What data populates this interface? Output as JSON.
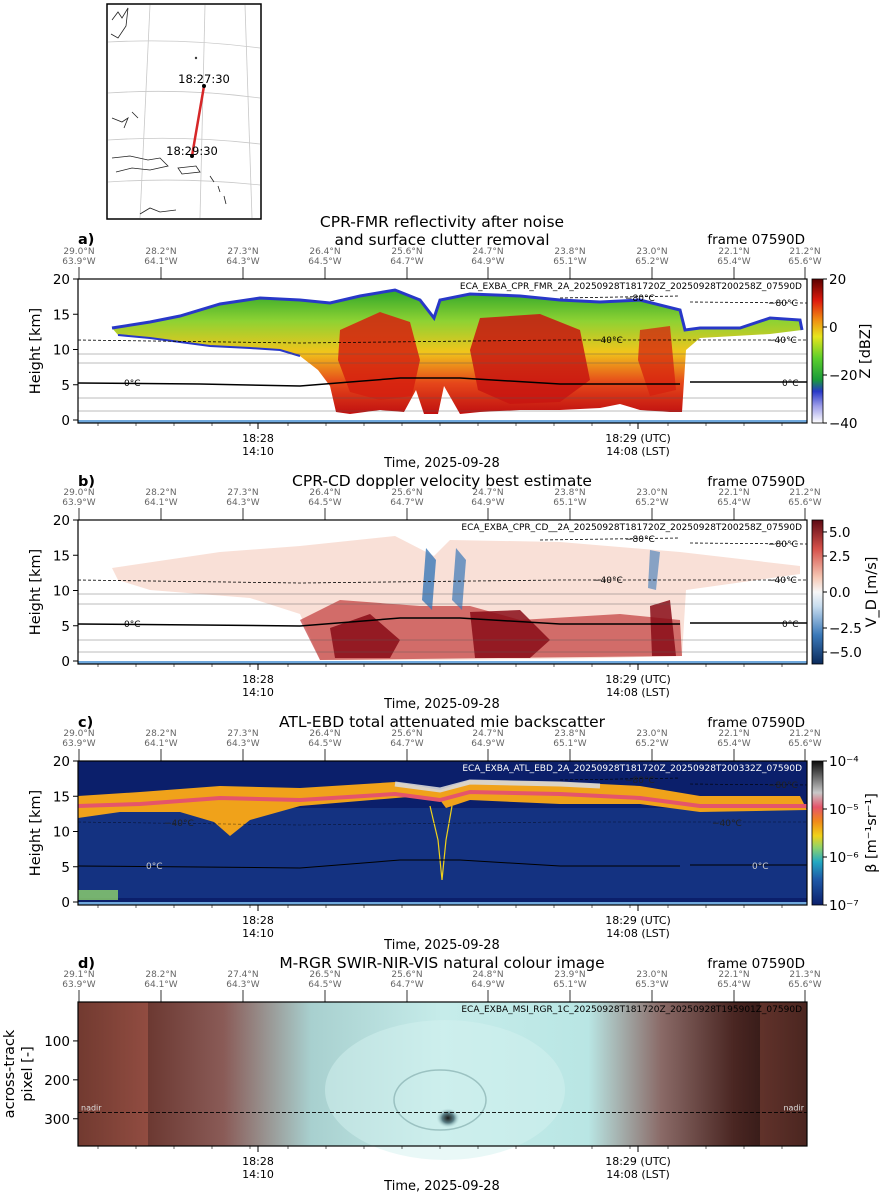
{
  "figure": {
    "frame_label": "frame 07590D",
    "time_axis_label": "Time, 2025-09-28",
    "time_ticks": [
      {
        "utc": "18:28",
        "lst": "14:10"
      },
      {
        "utc": "18:29 (UTC)",
        "lst": "14:08 (LST)"
      }
    ],
    "geo_ticks": [
      {
        "lat": "29.0°N",
        "lon": "63.9°W"
      },
      {
        "lat": "28.2°N",
        "lon": "64.1°W"
      },
      {
        "lat": "27.3°N",
        "lon": "64.3°W"
      },
      {
        "lat": "26.4°N",
        "lon": "64.5°W"
      },
      {
        "lat": "25.6°N",
        "lon": "64.7°W"
      },
      {
        "lat": "24.7°N",
        "lon": "64.9°W"
      },
      {
        "lat": "23.8°N",
        "lon": "65.1°W"
      },
      {
        "lat": "23.0°N",
        "lon": "65.2°W"
      },
      {
        "lat": "22.1°N",
        "lon": "65.4°W"
      },
      {
        "lat": "21.2°N",
        "lon": "65.6°W"
      }
    ],
    "geo_ticks_d": [
      {
        "lat": "29.1°N",
        "lon": "63.9°W"
      },
      {
        "lat": "28.2°N",
        "lon": "64.1°W"
      },
      {
        "lat": "27.4°N",
        "lon": "64.3°W"
      },
      {
        "lat": "26.5°N",
        "lon": "64.5°W"
      },
      {
        "lat": "25.6°N",
        "lon": "64.7°W"
      },
      {
        "lat": "24.8°N",
        "lon": "64.9°W"
      },
      {
        "lat": "23.9°N",
        "lon": "65.1°W"
      },
      {
        "lat": "23.0°N",
        "lon": "65.3°W"
      },
      {
        "lat": "22.1°N",
        "lon": "65.4°W"
      },
      {
        "lat": "21.3°N",
        "lon": "65.6°W"
      }
    ],
    "colors": {
      "track": "#d62728",
      "surface": "#6fa8dc",
      "atl_background": "#0b1f6b",
      "rgb_ocean": "#2a1716",
      "rgb_cloud": "#bfe9e6",
      "rgb_land_red": "#d9735f"
    }
  },
  "map": {
    "times": [
      "18:27:30",
      "18:29:30"
    ],
    "track_endpoints_deg": {
      "start": {
        "lat": 29.0,
        "lon": -63.9
      },
      "end": {
        "lat": 21.2,
        "lon": -65.6
      }
    }
  },
  "panels": [
    {
      "letter": "a)",
      "title_lines": [
        "CPR-FMR reflectivity after noise",
        "and surface clutter removal"
      ],
      "product": "ECA_EXBA_CPR_FMR_2A_20250928T181720Z_20250928T200258Z_07590D",
      "ylabel": "Height [km]",
      "yticks": [
        "0",
        "5",
        "10",
        "15",
        "20"
      ],
      "cbar_label": "Z [dBZ]",
      "cbar_ticks": [
        "20",
        "0",
        "−20",
        "−40"
      ],
      "isotherms": {
        "zero": "0°C",
        "minus40": "−40°C",
        "minus80": "−80°C"
      }
    },
    {
      "letter": "b)",
      "title_lines": [
        "CPR-CD doppler velocity best estimate"
      ],
      "product": "ECA_EXBA_CPR_CD__2A_20250928T181720Z_20250928T200258Z_07590D",
      "ylabel": "Height [km]",
      "yticks": [
        "0",
        "5",
        "10",
        "15",
        "20"
      ],
      "cbar_label": "V_D [m/s]",
      "cbar_ticks": [
        "5.0",
        "2.5",
        "0.0",
        "−2.5",
        "−5.0"
      ],
      "isotherms": {
        "zero": "0°C",
        "minus40": "−40°C",
        "minus80": "−80°C"
      }
    },
    {
      "letter": "c)",
      "title_lines": [
        "ATL-EBD total attenuated mie backscatter"
      ],
      "product": "ECA_EXBA_ATL_EBD_2A_20250928T181720Z_20250928T200332Z_07590D",
      "ylabel": "Height [km]",
      "yticks": [
        "0",
        "5",
        "10",
        "15",
        "20"
      ],
      "cbar_label": "β [m⁻¹sr⁻¹]",
      "cbar_ticks": [
        "10⁻⁴",
        "10⁻⁵",
        "10⁻⁶",
        "10⁻⁷"
      ],
      "isotherms": {
        "zero": "0°C",
        "minus40": "−40°C",
        "minus80": "−80°C"
      }
    },
    {
      "letter": "d)",
      "title_lines": [
        "M-RGR SWIR-NIR-VIS natural colour image"
      ],
      "product": "ECA_EXBA_MSI_RGR_1C_20250928T181720Z_20250928T195901Z_07590D",
      "ylabel_lines": [
        "across-track",
        "pixel [-]"
      ],
      "yticks": [
        "100",
        "200",
        "300"
      ],
      "nadir_label": "nadir"
    }
  ],
  "chart_data": [
    {
      "type": "heatmap",
      "title": "CPR-FMR reflectivity after noise and surface clutter removal",
      "xlabel": "Time, 2025-09-28",
      "ylabel": "Height [km]",
      "ylim": [
        0,
        20
      ],
      "clim": [
        -40,
        20
      ],
      "colorbar_label": "Z [dBZ]",
      "x_ticks": [
        "18:28",
        "18:29 (UTC)"
      ],
      "cloud_top_km_approx": [
        13,
        15.5,
        16.5,
        13.5,
        12.5
      ]
    },
    {
      "type": "heatmap",
      "title": "CPR-CD doppler velocity best estimate",
      "xlabel": "Time, 2025-09-28",
      "ylabel": "Height [km]",
      "ylim": [
        0,
        20
      ],
      "clim": [
        -6,
        6
      ],
      "colorbar_label": "V_D [m/s]"
    },
    {
      "type": "heatmap",
      "title": "ATL-EBD total attenuated mie backscatter",
      "xlabel": "Time, 2025-09-28",
      "ylabel": "Height [km]",
      "ylim": [
        0,
        20
      ],
      "clim": [
        1e-07,
        0.0001
      ],
      "scale": "log",
      "colorbar_label": "β [m⁻¹sr⁻¹]"
    },
    {
      "type": "heatmap",
      "title": "M-RGR SWIR-NIR-VIS natural colour image",
      "xlabel": "Time, 2025-09-28",
      "ylabel": "across-track pixel [-]",
      "ylim": [
        370,
        0
      ],
      "nadir_pixel": 284
    }
  ]
}
